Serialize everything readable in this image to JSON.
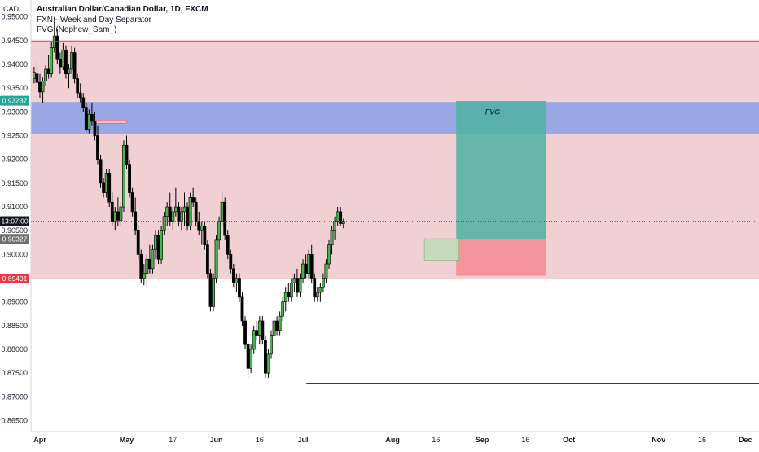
{
  "header": {
    "currency": "CAD",
    "symbol_title": "Australian Dollar/Canadian Dollar, 1D, FXCM",
    "indicator_1": "FXN - Week and Day Separator",
    "indicator_2": "FVG (Nephew_Sam_)"
  },
  "chart_data": {
    "type": "candlestick",
    "title": "Australian Dollar/Canadian Dollar, 1D, FXCM",
    "y_axis": {
      "ticks": [
        0.95,
        0.945,
        0.94,
        0.935,
        0.93,
        0.925,
        0.92,
        0.915,
        0.91,
        0.905,
        0.9,
        0.895,
        0.89,
        0.885,
        0.88,
        0.875,
        0.87,
        0.865
      ],
      "tick_labels": [
        "0.95000",
        "0.94500",
        "0.94000",
        "0.93500",
        "0.93000",
        "0.92500",
        "0.92000",
        "0.91500",
        "0.91000",
        "0.90500",
        "0.90000",
        "0.89500",
        "0.89000",
        "0.88500",
        "0.88000",
        "0.87500",
        "0.87000",
        "0.86500"
      ],
      "range": [
        0.8632,
        0.9515
      ]
    },
    "x_axis": {
      "labels": [
        {
          "text": "Apr",
          "day": 0,
          "bold": true
        },
        {
          "text": "May",
          "day": 30,
          "bold": true
        },
        {
          "text": "17",
          "day": 46,
          "bold": false
        },
        {
          "text": "Jun",
          "day": 61,
          "bold": true
        },
        {
          "text": "16",
          "day": 76,
          "bold": false
        },
        {
          "text": "Jul",
          "day": 91,
          "bold": true
        },
        {
          "text": "Aug",
          "day": 122,
          "bold": true
        },
        {
          "text": "16",
          "day": 137,
          "bold": false
        },
        {
          "text": "Sep",
          "day": 153,
          "bold": true
        },
        {
          "text": "16",
          "day": 168,
          "bold": false
        },
        {
          "text": "Oct",
          "day": 183,
          "bold": true
        },
        {
          "text": "Nov",
          "day": 214,
          "bold": true
        },
        {
          "text": "16",
          "day": 229,
          "bold": false
        },
        {
          "text": "Dec",
          "day": 244,
          "bold": true
        }
      ]
    },
    "price_badges": [
      {
        "text": "0.93237",
        "value": 0.93237,
        "color": "#26a69a"
      },
      {
        "text": "13:07:00",
        "value": 0.907,
        "color": "#131722"
      },
      {
        "text": "0.90327",
        "value": 0.90327,
        "color": "#707070"
      },
      {
        "text": "0.89491",
        "value": 0.89491,
        "color": "#f23645"
      }
    ],
    "zones": [
      {
        "name": "premium-zone",
        "y_top": 0.9452,
        "y_bottom": 0.8949,
        "color": "#e9b3b8"
      },
      {
        "name": "fvg-zone",
        "y_top": 0.9321,
        "y_bottom": 0.9254,
        "color": "#8fa3e6"
      },
      {
        "name": "small-fvg",
        "day_start": 19,
        "day_end": 30,
        "y_top": 0.9283,
        "y_bottom": 0.9279,
        "color": "#f0c8cc"
      },
      {
        "name": "target-box",
        "day_start": 144,
        "day_end": 175,
        "y_top": 0.9323,
        "y_bottom": 0.9033,
        "color": "#4fb1a2"
      },
      {
        "name": "stop-box",
        "day_start": 144,
        "day_end": 175,
        "y_top": 0.9033,
        "y_bottom": 0.8955,
        "color": "#f28a8e"
      },
      {
        "name": "entry-box",
        "day_start": 133,
        "day_end": 145,
        "y_top": 0.9033,
        "y_bottom": 0.8988,
        "color": "#c2ddb9"
      }
    ],
    "lines": [
      {
        "name": "top-red-line",
        "value": 0.9448,
        "color": "#e53935"
      },
      {
        "name": "bottom-black-line",
        "day_start": 91,
        "value": 0.8728,
        "color": "#000000"
      },
      {
        "name": "current-price-dotted",
        "value": 0.907,
        "color": "#555555"
      }
    ],
    "annotations": [
      {
        "text": "FVG",
        "day": 154,
        "value": 0.9295
      }
    ],
    "candles": [
      {
        "d": -2,
        "o": 0.937,
        "h": 0.9395,
        "l": 0.936,
        "c": 0.9382
      },
      {
        "d": -1,
        "o": 0.938,
        "h": 0.941,
        "l": 0.935,
        "c": 0.9362
      },
      {
        "d": 0,
        "o": 0.9362,
        "h": 0.938,
        "l": 0.933,
        "c": 0.9342
      },
      {
        "d": 1,
        "o": 0.9342,
        "h": 0.9372,
        "l": 0.9318,
        "c": 0.9365
      },
      {
        "d": 2,
        "o": 0.9365,
        "h": 0.9398,
        "l": 0.9355,
        "c": 0.939
      },
      {
        "d": 3,
        "o": 0.939,
        "h": 0.942,
        "l": 0.937,
        "c": 0.938
      },
      {
        "d": 4,
        "o": 0.938,
        "h": 0.9448,
        "l": 0.9372,
        "c": 0.9435
      },
      {
        "d": 5,
        "o": 0.9435,
        "h": 0.95,
        "l": 0.9425,
        "c": 0.946
      },
      {
        "d": 6,
        "o": 0.946,
        "h": 0.9475,
        "l": 0.94,
        "c": 0.941
      },
      {
        "d": 7,
        "o": 0.941,
        "h": 0.9425,
        "l": 0.938,
        "c": 0.9395
      },
      {
        "d": 8,
        "o": 0.9395,
        "h": 0.9445,
        "l": 0.9388,
        "c": 0.943
      },
      {
        "d": 9,
        "o": 0.943,
        "h": 0.944,
        "l": 0.937,
        "c": 0.938
      },
      {
        "d": 10,
        "o": 0.938,
        "h": 0.94,
        "l": 0.935,
        "c": 0.939
      },
      {
        "d": 11,
        "o": 0.939,
        "h": 0.944,
        "l": 0.938,
        "c": 0.9425
      },
      {
        "d": 12,
        "o": 0.9425,
        "h": 0.9435,
        "l": 0.936,
        "c": 0.937
      },
      {
        "d": 13,
        "o": 0.937,
        "h": 0.938,
        "l": 0.933,
        "c": 0.934
      },
      {
        "d": 14,
        "o": 0.934,
        "h": 0.936,
        "l": 0.932,
        "c": 0.933
      },
      {
        "d": 15,
        "o": 0.933,
        "h": 0.934,
        "l": 0.93,
        "c": 0.931
      },
      {
        "d": 16,
        "o": 0.931,
        "h": 0.932,
        "l": 0.9258,
        "c": 0.9262
      },
      {
        "d": 17,
        "o": 0.9262,
        "h": 0.9305,
        "l": 0.9255,
        "c": 0.9295
      },
      {
        "d": 18,
        "o": 0.9295,
        "h": 0.932,
        "l": 0.927,
        "c": 0.928
      },
      {
        "d": 19,
        "o": 0.928,
        "h": 0.93,
        "l": 0.924,
        "c": 0.925
      },
      {
        "d": 20,
        "o": 0.925,
        "h": 0.927,
        "l": 0.919,
        "c": 0.92
      },
      {
        "d": 21,
        "o": 0.92,
        "h": 0.921,
        "l": 0.914,
        "c": 0.915
      },
      {
        "d": 22,
        "o": 0.915,
        "h": 0.916,
        "l": 0.912,
        "c": 0.913
      },
      {
        "d": 23,
        "o": 0.913,
        "h": 0.918,
        "l": 0.912,
        "c": 0.917
      },
      {
        "d": 24,
        "o": 0.917,
        "h": 0.918,
        "l": 0.91,
        "c": 0.911
      },
      {
        "d": 25,
        "o": 0.911,
        "h": 0.913,
        "l": 0.906,
        "c": 0.907
      },
      {
        "d": 26,
        "o": 0.907,
        "h": 0.91,
        "l": 0.905,
        "c": 0.909
      },
      {
        "d": 27,
        "o": 0.909,
        "h": 0.912,
        "l": 0.906,
        "c": 0.9072
      },
      {
        "d": 28,
        "o": 0.9072,
        "h": 0.911,
        "l": 0.906,
        "c": 0.91
      },
      {
        "d": 29,
        "o": 0.91,
        "h": 0.924,
        "l": 0.909,
        "c": 0.923
      },
      {
        "d": 30,
        "o": 0.923,
        "h": 0.925,
        "l": 0.918,
        "c": 0.919
      },
      {
        "d": 31,
        "o": 0.919,
        "h": 0.92,
        "l": 0.912,
        "c": 0.913
      },
      {
        "d": 32,
        "o": 0.913,
        "h": 0.914,
        "l": 0.908,
        "c": 0.909
      },
      {
        "d": 33,
        "o": 0.909,
        "h": 0.912,
        "l": 0.904,
        "c": 0.905
      },
      {
        "d": 34,
        "o": 0.905,
        "h": 0.906,
        "l": 0.899,
        "c": 0.9
      },
      {
        "d": 35,
        "o": 0.9,
        "h": 0.901,
        "l": 0.894,
        "c": 0.895
      },
      {
        "d": 36,
        "o": 0.895,
        "h": 0.898,
        "l": 0.8935,
        "c": 0.896
      },
      {
        "d": 37,
        "o": 0.896,
        "h": 0.9,
        "l": 0.893,
        "c": 0.899
      },
      {
        "d": 38,
        "o": 0.899,
        "h": 0.902,
        "l": 0.896,
        "c": 0.897
      },
      {
        "d": 39,
        "o": 0.897,
        "h": 0.902,
        "l": 0.896,
        "c": 0.901
      },
      {
        "d": 40,
        "o": 0.901,
        "h": 0.905,
        "l": 0.899,
        "c": 0.904
      },
      {
        "d": 41,
        "o": 0.904,
        "h": 0.905,
        "l": 0.898,
        "c": 0.899
      },
      {
        "d": 42,
        "o": 0.899,
        "h": 0.906,
        "l": 0.898,
        "c": 0.905
      },
      {
        "d": 43,
        "o": 0.905,
        "h": 0.909,
        "l": 0.904,
        "c": 0.908
      },
      {
        "d": 44,
        "o": 0.908,
        "h": 0.911,
        "l": 0.906,
        "c": 0.91
      },
      {
        "d": 45,
        "o": 0.91,
        "h": 0.913,
        "l": 0.906,
        "c": 0.907
      },
      {
        "d": 46,
        "o": 0.907,
        "h": 0.91,
        "l": 0.905,
        "c": 0.909
      },
      {
        "d": 47,
        "o": 0.909,
        "h": 0.914,
        "l": 0.908,
        "c": 0.91
      },
      {
        "d": 48,
        "o": 0.91,
        "h": 0.911,
        "l": 0.906,
        "c": 0.907
      },
      {
        "d": 49,
        "o": 0.907,
        "h": 0.91,
        "l": 0.905,
        "c": 0.909
      },
      {
        "d": 50,
        "o": 0.909,
        "h": 0.913,
        "l": 0.906,
        "c": 0.91
      },
      {
        "d": 51,
        "o": 0.91,
        "h": 0.911,
        "l": 0.905,
        "c": 0.906
      },
      {
        "d": 52,
        "o": 0.906,
        "h": 0.913,
        "l": 0.905,
        "c": 0.912
      },
      {
        "d": 53,
        "o": 0.912,
        "h": 0.914,
        "l": 0.91,
        "c": 0.911
      },
      {
        "d": 54,
        "o": 0.911,
        "h": 0.912,
        "l": 0.906,
        "c": 0.907
      },
      {
        "d": 55,
        "o": 0.907,
        "h": 0.909,
        "l": 0.904,
        "c": 0.905
      },
      {
        "d": 56,
        "o": 0.905,
        "h": 0.907,
        "l": 0.902,
        "c": 0.906
      },
      {
        "d": 57,
        "o": 0.906,
        "h": 0.907,
        "l": 0.901,
        "c": 0.902
      },
      {
        "d": 58,
        "o": 0.902,
        "h": 0.903,
        "l": 0.895,
        "c": 0.896
      },
      {
        "d": 59,
        "o": 0.896,
        "h": 0.897,
        "l": 0.888,
        "c": 0.889
      },
      {
        "d": 60,
        "o": 0.889,
        "h": 0.896,
        "l": 0.888,
        "c": 0.895
      },
      {
        "d": 61,
        "o": 0.895,
        "h": 0.904,
        "l": 0.894,
        "c": 0.903
      },
      {
        "d": 62,
        "o": 0.903,
        "h": 0.908,
        "l": 0.901,
        "c": 0.907
      },
      {
        "d": 63,
        "o": 0.907,
        "h": 0.913,
        "l": 0.906,
        "c": 0.911
      },
      {
        "d": 64,
        "o": 0.911,
        "h": 0.912,
        "l": 0.903,
        "c": 0.904
      },
      {
        "d": 65,
        "o": 0.904,
        "h": 0.905,
        "l": 0.899,
        "c": 0.9
      },
      {
        "d": 66,
        "o": 0.9,
        "h": 0.901,
        "l": 0.896,
        "c": 0.897
      },
      {
        "d": 67,
        "o": 0.897,
        "h": 0.898,
        "l": 0.893,
        "c": 0.894
      },
      {
        "d": 68,
        "o": 0.894,
        "h": 0.896,
        "l": 0.892,
        "c": 0.895
      },
      {
        "d": 69,
        "o": 0.895,
        "h": 0.896,
        "l": 0.89,
        "c": 0.891
      },
      {
        "d": 70,
        "o": 0.891,
        "h": 0.892,
        "l": 0.885,
        "c": 0.886
      },
      {
        "d": 71,
        "o": 0.886,
        "h": 0.887,
        "l": 0.88,
        "c": 0.881
      },
      {
        "d": 72,
        "o": 0.881,
        "h": 0.882,
        "l": 0.874,
        "c": 0.876
      },
      {
        "d": 73,
        "o": 0.876,
        "h": 0.881,
        "l": 0.875,
        "c": 0.88
      },
      {
        "d": 74,
        "o": 0.88,
        "h": 0.885,
        "l": 0.879,
        "c": 0.884
      },
      {
        "d": 75,
        "o": 0.884,
        "h": 0.886,
        "l": 0.882,
        "c": 0.883
      },
      {
        "d": 76,
        "o": 0.883,
        "h": 0.887,
        "l": 0.881,
        "c": 0.886
      },
      {
        "d": 77,
        "o": 0.886,
        "h": 0.887,
        "l": 0.881,
        "c": 0.882
      },
      {
        "d": 78,
        "o": 0.882,
        "h": 0.883,
        "l": 0.874,
        "c": 0.875
      },
      {
        "d": 79,
        "o": 0.875,
        "h": 0.88,
        "l": 0.874,
        "c": 0.879
      },
      {
        "d": 80,
        "o": 0.879,
        "h": 0.884,
        "l": 0.878,
        "c": 0.883
      },
      {
        "d": 81,
        "o": 0.883,
        "h": 0.887,
        "l": 0.882,
        "c": 0.886
      },
      {
        "d": 82,
        "o": 0.886,
        "h": 0.887,
        "l": 0.883,
        "c": 0.884
      },
      {
        "d": 83,
        "o": 0.884,
        "h": 0.888,
        "l": 0.883,
        "c": 0.887
      },
      {
        "d": 84,
        "o": 0.887,
        "h": 0.891,
        "l": 0.886,
        "c": 0.89
      },
      {
        "d": 85,
        "o": 0.89,
        "h": 0.893,
        "l": 0.888,
        "c": 0.892
      },
      {
        "d": 86,
        "o": 0.892,
        "h": 0.894,
        "l": 0.89,
        "c": 0.891
      },
      {
        "d": 87,
        "o": 0.891,
        "h": 0.895,
        "l": 0.89,
        "c": 0.894
      },
      {
        "d": 88,
        "o": 0.894,
        "h": 0.896,
        "l": 0.892,
        "c": 0.895
      },
      {
        "d": 89,
        "o": 0.895,
        "h": 0.897,
        "l": 0.891,
        "c": 0.892
      },
      {
        "d": 90,
        "o": 0.892,
        "h": 0.896,
        "l": 0.891,
        "c": 0.895
      },
      {
        "d": 91,
        "o": 0.895,
        "h": 0.899,
        "l": 0.894,
        "c": 0.898
      },
      {
        "d": 92,
        "o": 0.898,
        "h": 0.9,
        "l": 0.895,
        "c": 0.896
      },
      {
        "d": 93,
        "o": 0.896,
        "h": 0.901,
        "l": 0.895,
        "c": 0.9
      },
      {
        "d": 94,
        "o": 0.9,
        "h": 0.902,
        "l": 0.894,
        "c": 0.895
      },
      {
        "d": 95,
        "o": 0.895,
        "h": 0.896,
        "l": 0.89,
        "c": 0.891
      },
      {
        "d": 96,
        "o": 0.891,
        "h": 0.893,
        "l": 0.89,
        "c": 0.892
      },
      {
        "d": 97,
        "o": 0.892,
        "h": 0.894,
        "l": 0.89,
        "c": 0.893
      },
      {
        "d": 98,
        "o": 0.893,
        "h": 0.896,
        "l": 0.892,
        "c": 0.895
      },
      {
        "d": 99,
        "o": 0.895,
        "h": 0.899,
        "l": 0.894,
        "c": 0.898
      },
      {
        "d": 100,
        "o": 0.898,
        "h": 0.903,
        "l": 0.897,
        "c": 0.902
      },
      {
        "d": 101,
        "o": 0.902,
        "h": 0.906,
        "l": 0.9,
        "c": 0.905
      },
      {
        "d": 102,
        "o": 0.905,
        "h": 0.908,
        "l": 0.903,
        "c": 0.907
      },
      {
        "d": 103,
        "o": 0.907,
        "h": 0.91,
        "l": 0.906,
        "c": 0.909
      },
      {
        "d": 104,
        "o": 0.909,
        "h": 0.91,
        "l": 0.906,
        "c": 0.9065
      },
      {
        "d": 105,
        "o": 0.9065,
        "h": 0.9075,
        "l": 0.9055,
        "c": 0.907
      }
    ]
  }
}
